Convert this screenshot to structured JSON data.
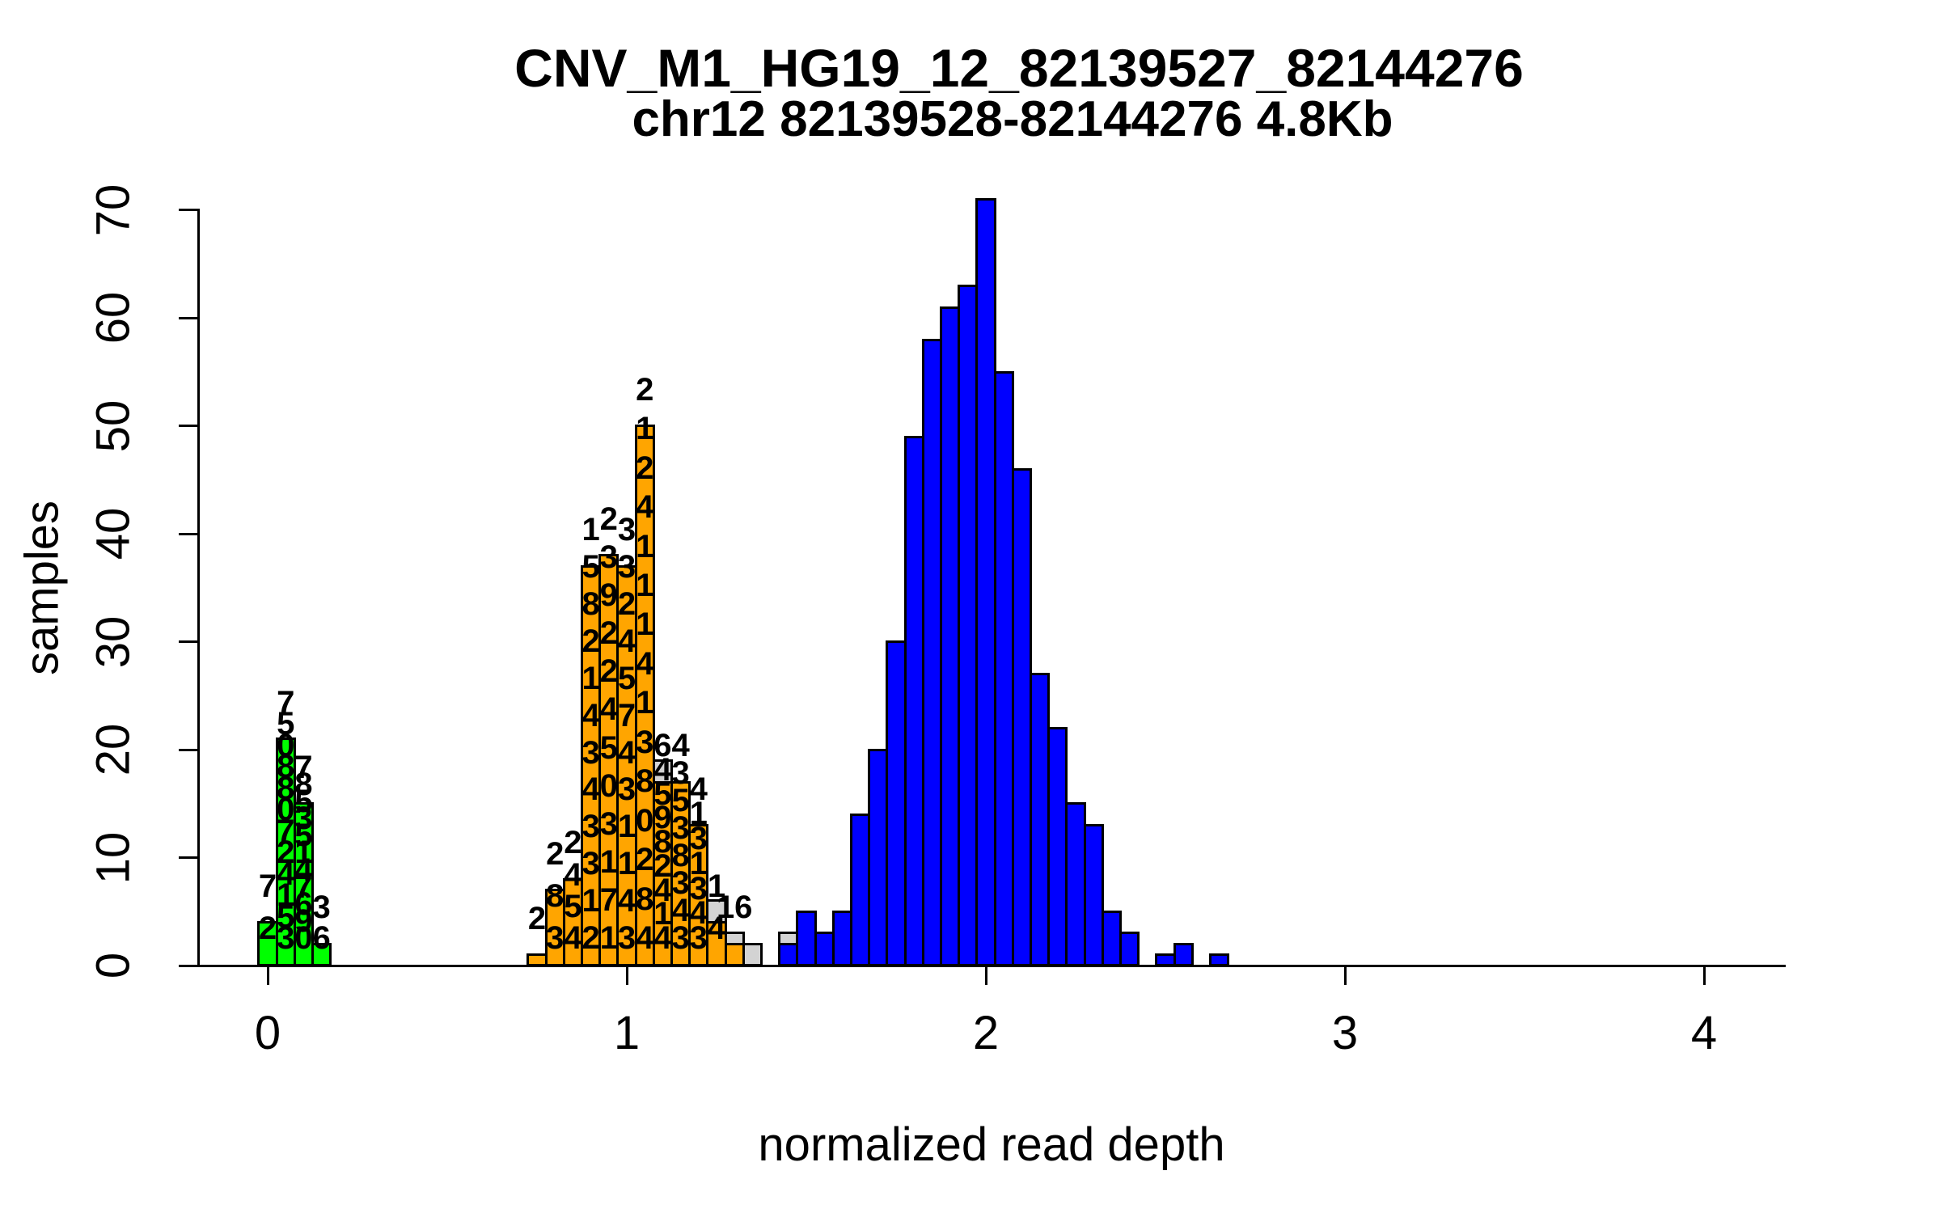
{
  "chart_data": {
    "type": "bar",
    "subtype": "histogram",
    "title": "CNV_M1_HG19_12_82139527_82144276",
    "subtitle": "chr12 82139528-82144276 4.8Kb",
    "xlabel": "normalized read depth",
    "ylabel": "samples",
    "xlim": [
      -0.2,
      4.25
    ],
    "ylim": [
      0,
      71
    ],
    "x_ticks": [
      "0",
      "1",
      "2",
      "3",
      "4"
    ],
    "x_tick_values": [
      0,
      1,
      2,
      3,
      4
    ],
    "y_ticks": [
      "0",
      "10",
      "20",
      "30",
      "40",
      "50",
      "60",
      "70"
    ],
    "y_tick_values": [
      0,
      10,
      20,
      30,
      40,
      50,
      60,
      70
    ],
    "bin_width": 0.05,
    "grid": false,
    "legend": "none",
    "series": [
      {
        "name": "gray-background-histogram",
        "color": "#D3D3D3",
        "bars": [
          {
            "x": 1.1,
            "count": 19
          },
          {
            "x": 1.25,
            "count": 6
          },
          {
            "x": 1.3,
            "count": 3
          },
          {
            "x": 1.35,
            "count": 2
          },
          {
            "x": 1.45,
            "count": 3
          }
        ]
      },
      {
        "name": "green-histogram",
        "color": "#00FF00",
        "bars": [
          {
            "x": 0.0,
            "count": 4,
            "labels": [
              "7",
              "2"
            ]
          },
          {
            "x": 0.05,
            "count": 21,
            "labels": [
              "7",
              "5",
              "0",
              "8",
              "8",
              "0",
              "7",
              "2",
              "4",
              "1",
              "5",
              "3"
            ]
          },
          {
            "x": 0.1,
            "count": 15,
            "labels": [
              "7",
              "8",
              "5",
              "3",
              "5",
              "1",
              "4",
              "7",
              "6",
              "9",
              "0"
            ]
          },
          {
            "x": 0.15,
            "count": 2,
            "labels": [
              "3",
              "6"
            ]
          }
        ]
      },
      {
        "name": "orange-histogram",
        "color": "#FFA500",
        "bars": [
          {
            "x": 0.75,
            "count": 1,
            "labels": [
              "2"
            ]
          },
          {
            "x": 0.8,
            "count": 7,
            "labels": [
              "2",
              "8",
              "3"
            ]
          },
          {
            "x": 0.85,
            "count": 8,
            "labels": [
              "2",
              "4",
              "5",
              "4"
            ]
          },
          {
            "x": 0.9,
            "count": 37,
            "labels": [
              "1",
              "5",
              "8",
              "2",
              "1",
              "4",
              "3",
              "4",
              "3",
              "3",
              "1",
              "2"
            ]
          },
          {
            "x": 0.95,
            "count": 38,
            "labels": [
              "2",
              "3",
              "9",
              "2",
              "2",
              "4",
              "5",
              "0",
              "3",
              "1",
              "7",
              "1"
            ]
          },
          {
            "x": 1.0,
            "count": 37,
            "labels": [
              "3",
              "3",
              "2",
              "4",
              "5",
              "7",
              "4",
              "3",
              "1",
              "1",
              "4",
              "3"
            ]
          },
          {
            "x": 1.05,
            "count": 50,
            "labels": [
              "2",
              "1",
              "2",
              "4",
              "1",
              "1",
              "1",
              "4",
              "1",
              "3",
              "8",
              "0",
              "2",
              "8",
              "4"
            ]
          },
          {
            "x": 1.1,
            "count": 17,
            "labels": [
              "6",
              "4",
              "5",
              "9",
              "8",
              "2",
              "4",
              "1",
              "4"
            ]
          },
          {
            "x": 1.15,
            "count": 17,
            "labels": [
              "4",
              "3",
              "5",
              "3",
              "8",
              "3",
              "4",
              "3"
            ]
          },
          {
            "x": 1.2,
            "count": 13,
            "labels": [
              "4",
              "1",
              "3",
              "1",
              "3",
              "4",
              "3"
            ]
          },
          {
            "x": 1.25,
            "count": 4,
            "labels": [
              "1",
              "4"
            ]
          },
          {
            "x": 1.3,
            "count": 2,
            "labels": [
              "16"
            ]
          }
        ]
      },
      {
        "name": "blue-histogram",
        "color": "#0000FF",
        "bars": [
          {
            "x": 1.45,
            "count": 2
          },
          {
            "x": 1.5,
            "count": 5
          },
          {
            "x": 1.55,
            "count": 3
          },
          {
            "x": 1.6,
            "count": 5
          },
          {
            "x": 1.65,
            "count": 14
          },
          {
            "x": 1.7,
            "count": 20
          },
          {
            "x": 1.75,
            "count": 30
          },
          {
            "x": 1.8,
            "count": 49
          },
          {
            "x": 1.85,
            "count": 58
          },
          {
            "x": 1.9,
            "count": 61
          },
          {
            "x": 1.95,
            "count": 63
          },
          {
            "x": 2.0,
            "count": 71
          },
          {
            "x": 2.05,
            "count": 55
          },
          {
            "x": 2.1,
            "count": 46
          },
          {
            "x": 2.15,
            "count": 27
          },
          {
            "x": 2.2,
            "count": 22
          },
          {
            "x": 2.25,
            "count": 15
          },
          {
            "x": 2.3,
            "count": 13
          },
          {
            "x": 2.35,
            "count": 5
          },
          {
            "x": 2.4,
            "count": 3
          },
          {
            "x": 2.45,
            "count": 0
          },
          {
            "x": 2.5,
            "count": 1
          },
          {
            "x": 2.55,
            "count": 2
          },
          {
            "x": 2.6,
            "count": 0
          },
          {
            "x": 2.65,
            "count": 1
          }
        ]
      }
    ]
  },
  "colors": {
    "background": "#FFFFFF",
    "axis": "#000000",
    "text": "#000000",
    "green_bars": "#00FF00",
    "orange_bars": "#FFA500",
    "blue_bars": "#0000FF",
    "gray_bars": "#D3D3D3"
  }
}
